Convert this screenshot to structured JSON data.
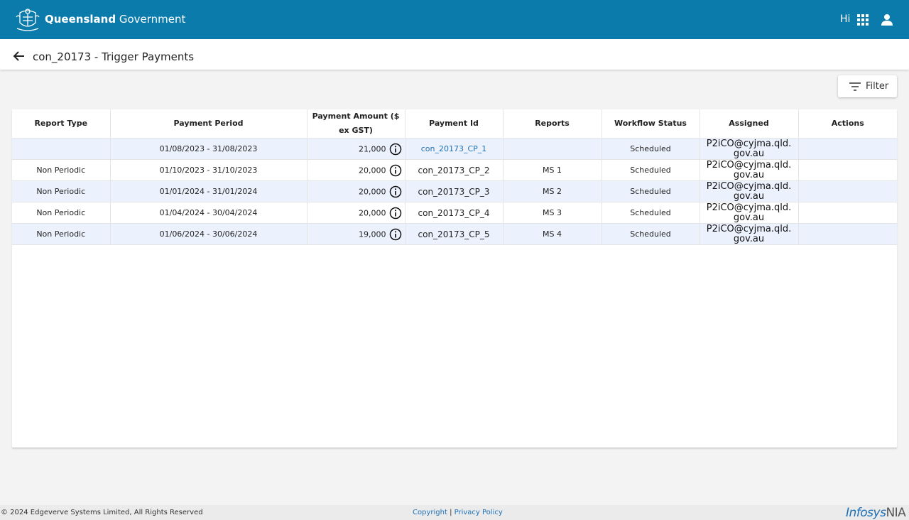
{
  "header": {
    "brand_bold": "Queensland",
    "brand_regular": "Government",
    "greeting": "Hi"
  },
  "page": {
    "title": "con_20173 - Trigger Payments"
  },
  "toolbar": {
    "filter_label": "Filter"
  },
  "table": {
    "columns": [
      "Report Type",
      "Payment Period",
      "Payment Amount ($ ex GST)",
      "Payment Id",
      "Reports",
      "Workflow Status",
      "Assigned",
      "Actions"
    ],
    "rows": [
      {
        "report_type": "",
        "period": "01/08/2023 - 31/08/2023",
        "amount": "21,000",
        "payment_id": "con_20173_CP_1",
        "reports": "",
        "status": "Scheduled",
        "assigned_1": "P2iCO@cyjma.qld.",
        "assigned_2": "gov.au",
        "actions": ""
      },
      {
        "report_type": "Non Periodic",
        "period": "01/10/2023 - 31/10/2023",
        "amount": "20,000",
        "payment_id": "con_20173_CP_2",
        "reports": "MS 1",
        "status": "Scheduled",
        "assigned_1": "P2iCO@cyjma.qld.",
        "assigned_2": "gov.au",
        "actions": ""
      },
      {
        "report_type": "Non Periodic",
        "period": "01/01/2024 - 31/01/2024",
        "amount": "20,000",
        "payment_id": "con_20173_CP_3",
        "reports": "MS 2",
        "status": "Scheduled",
        "assigned_1": "P2iCO@cyjma.qld.",
        "assigned_2": "gov.au",
        "actions": ""
      },
      {
        "report_type": "Non Periodic",
        "period": "01/04/2024 - 30/04/2024",
        "amount": "20,000",
        "payment_id": "con_20173_CP_4",
        "reports": "MS 3",
        "status": "Scheduled",
        "assigned_1": "P2iCO@cyjma.qld.",
        "assigned_2": "gov.au",
        "actions": ""
      },
      {
        "report_type": "Non Periodic",
        "period": "01/06/2024 - 30/06/2024",
        "amount": "19,000",
        "payment_id": "con_20173_CP_5",
        "reports": "MS 4",
        "status": "Scheduled",
        "assigned_1": "P2iCO@cyjma.qld.",
        "assigned_2": "gov.au",
        "actions": ""
      }
    ]
  },
  "footer": {
    "copyright": "© 2024 Edgeverve Systems Limited, All Rights Reserved",
    "copyright_link": "Copyright",
    "separator": "|",
    "privacy_link": "Privacy Policy",
    "logo_main": "Infosys",
    "logo_sub": "NIA"
  },
  "icons": {
    "logo": "queensland-crest-icon",
    "apps": "apps-grid-icon",
    "user": "user-icon",
    "back": "arrow-left-icon",
    "filter": "filter-lines-icon",
    "info": "info-circle-icon"
  },
  "colors": {
    "header_bg": "#0b7bac",
    "link": "#1e70b6",
    "row_alt": "#ecf2fd"
  }
}
